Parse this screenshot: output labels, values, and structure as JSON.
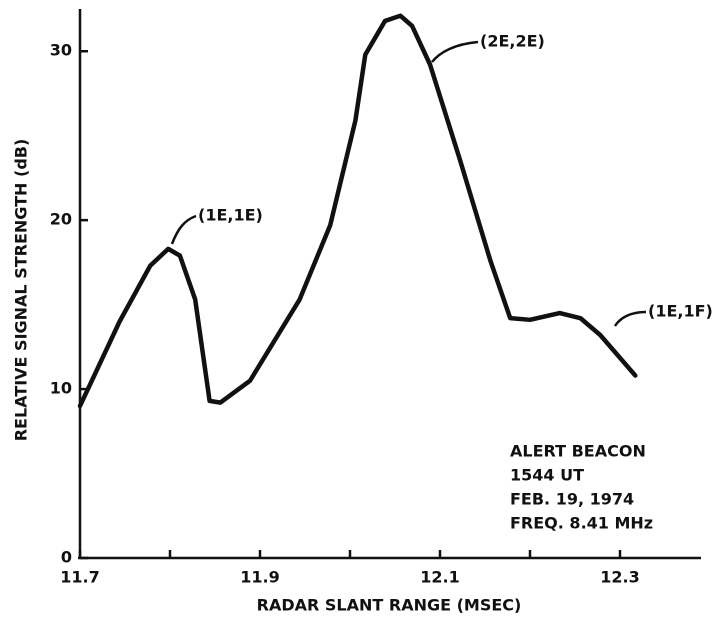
{
  "chart_data": {
    "type": "line",
    "x_label": "RADAR SLANT RANGE (MSEC)",
    "y_label": "RELATIVE SIGNAL STRENGTH (dB)",
    "x": [
      11.7,
      11.744,
      11.778,
      11.798,
      11.811,
      11.828,
      11.844,
      11.856,
      11.889,
      11.944,
      11.978,
      12.006,
      12.017,
      12.039,
      12.056,
      12.069,
      12.089,
      12.122,
      12.156,
      12.178,
      12.2,
      12.233,
      12.256,
      12.278,
      12.317
    ],
    "series": [
      {
        "color": "#111111",
        "values": [
          9.0,
          14.0,
          17.3,
          18.3,
          17.9,
          15.3,
          9.3,
          9.2,
          10.5,
          15.3,
          19.7,
          25.9,
          29.8,
          31.8,
          32.1,
          31.5,
          29.2,
          23.6,
          17.6,
          14.2,
          14.1,
          14.5,
          14.2,
          13.2,
          10.8
        ]
      }
    ],
    "xlim": [
      11.7,
      12.39
    ],
    "ylim": [
      0,
      32.5
    ],
    "xticks": [
      11.7,
      11.9,
      12.1,
      12.3
    ],
    "xminor_ticks": [
      11.8,
      12.0,
      12.2
    ],
    "yticks": [
      0,
      10,
      20,
      30
    ],
    "annotations": [
      "(1E,1E)",
      "(2E,2E)",
      "(1E,1F)"
    ],
    "info": [
      "ALERT BEACON",
      "1544 UT",
      "FEB. 19, 1974",
      "FREQ. 8.41 MHz"
    ]
  }
}
